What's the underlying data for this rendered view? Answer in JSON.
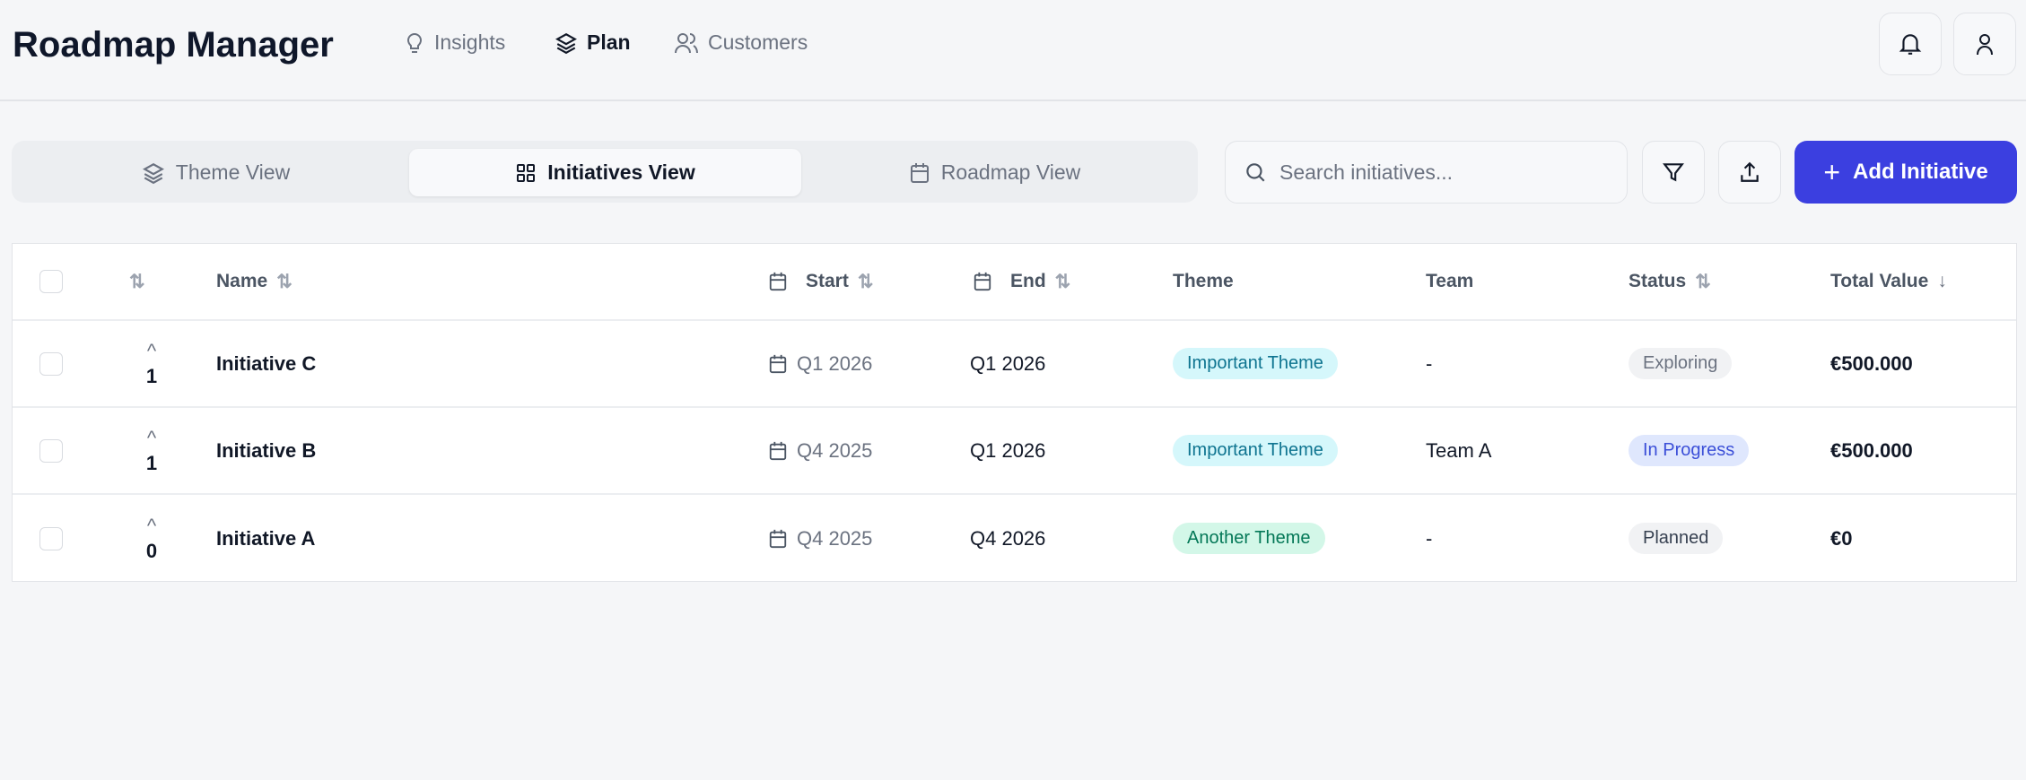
{
  "app": {
    "title": "Roadmap Manager"
  },
  "nav": [
    {
      "label": "Insights",
      "icon": "lightbulb-icon"
    },
    {
      "label": "Plan",
      "icon": "layers-icon",
      "active": true
    },
    {
      "label": "Customers",
      "icon": "users-icon"
    }
  ],
  "views": [
    {
      "label": "Theme View",
      "icon": "layers-icon"
    },
    {
      "label": "Initiatives View",
      "icon": "grid-icon",
      "active": true
    },
    {
      "label": "Roadmap View",
      "icon": "calendar-icon"
    }
  ],
  "search": {
    "placeholder": "Search initiatives...",
    "value": ""
  },
  "toolbar": {
    "add_label": "Add Initiative"
  },
  "colors": {
    "accent": "#3b3fe0",
    "theme_important_bg": "#d5f7fb",
    "theme_another_bg": "#d3f7e8",
    "in_progress_bg": "#dfe7fd"
  },
  "table": {
    "headers": {
      "name": "Name",
      "start": "Start",
      "end": "End",
      "theme": "Theme",
      "team": "Team",
      "status": "Status",
      "total": "Total Value"
    },
    "rows": [
      {
        "votes": "1",
        "name": "Initiative C",
        "start": "Q1 2026",
        "end": "Q1 2026",
        "theme": "Important Theme",
        "team": "-",
        "status": "Exploring",
        "total": "€500.000"
      },
      {
        "votes": "1",
        "name": "Initiative B",
        "start": "Q4 2025",
        "end": "Q1 2026",
        "theme": "Important Theme",
        "team": "Team A",
        "status": "In Progress",
        "total": "€500.000"
      },
      {
        "votes": "0",
        "name": "Initiative A",
        "start": "Q4 2025",
        "end": "Q4 2026",
        "theme": "Another Theme",
        "team": "-",
        "status": "Planned",
        "total": "€0"
      }
    ]
  }
}
